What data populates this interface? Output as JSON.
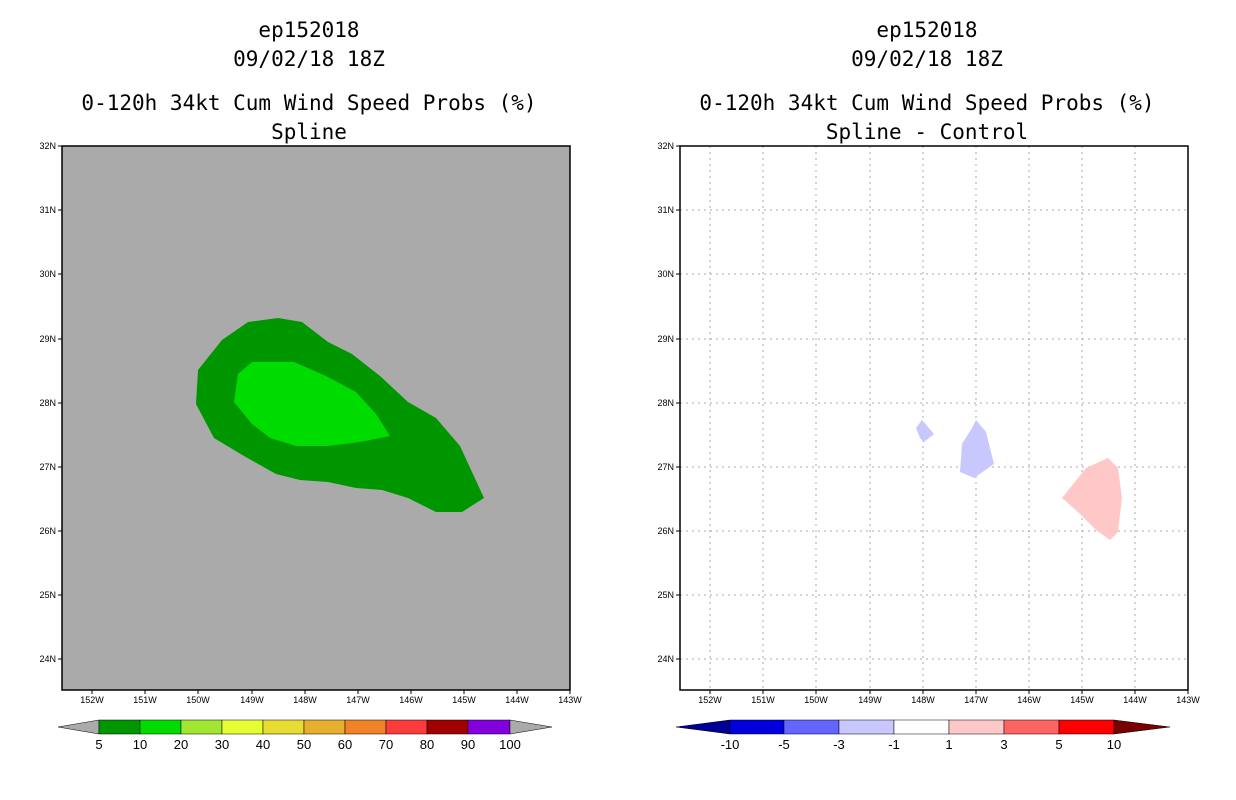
{
  "left_panel": {
    "title_line1": "ep152018",
    "title_line2": "09/02/18 18Z",
    "title_line3": "0-120h 34kt Cum Wind Speed Probs (%)",
    "title_line4": "Spline",
    "lat_labels": [
      "32N",
      "31N",
      "30N",
      "29N",
      "28N",
      "27N",
      "26N",
      "25N",
      "24N"
    ],
    "lon_labels": [
      "152W",
      "151W",
      "150W",
      "149W",
      "148W",
      "147W",
      "146W",
      "145W",
      "144W",
      "143W"
    ],
    "colorbar_labels": [
      "5",
      "10",
      "20",
      "30",
      "40",
      "50",
      "60",
      "70",
      "80",
      "90",
      "100"
    ],
    "colors": {
      "background": "#aaaaaa",
      "prob_5_10": "#009600",
      "prob_10_20": "#00dc00"
    }
  },
  "right_panel": {
    "title_line1": "ep152018",
    "title_line2": "09/02/18 18Z",
    "title_line3": "0-120h 34kt Cum Wind Speed Probs (%)",
    "title_line4": "Spline - Control",
    "lat_labels": [
      "32N",
      "31N",
      "30N",
      "29N",
      "28N",
      "27N",
      "26N",
      "25N",
      "24N"
    ],
    "lon_labels": [
      "152W",
      "151W",
      "150W",
      "149W",
      "148W",
      "147W",
      "146W",
      "145W",
      "144W",
      "143W"
    ],
    "colorbar_labels": [
      "-10",
      "-5",
      "-3",
      "-1",
      "1",
      "3",
      "5",
      "10"
    ],
    "colors": {
      "neg_1_3": "#c8c8ff",
      "pos_1_3": "#ffc8c8"
    }
  }
}
